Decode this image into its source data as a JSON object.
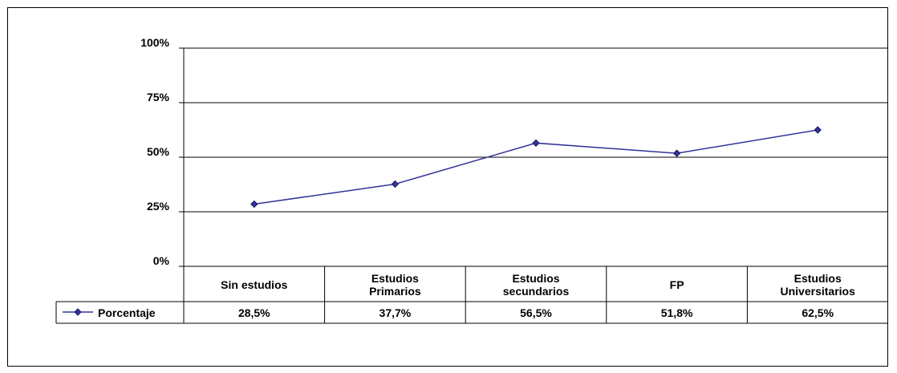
{
  "chart_data": {
    "type": "line",
    "categories": [
      [
        "Sin estudios"
      ],
      [
        "Estudios",
        "Primarios"
      ],
      [
        "Estudios",
        "secundarios"
      ],
      [
        "FP"
      ],
      [
        "Estudios",
        "Universitarios"
      ]
    ],
    "series": [
      {
        "name": "Porcentaje",
        "values": [
          28.5,
          37.7,
          56.5,
          51.8,
          62.5
        ],
        "labels": [
          "28,5%",
          "37,7%",
          "56,5%",
          "51,8%",
          "62,5%"
        ],
        "color": "#333399"
      }
    ],
    "yticks": [
      "0%",
      "25%",
      "50%",
      "75%",
      "100%"
    ],
    "ylim": [
      0,
      100
    ],
    "grid": true,
    "legend": "data-table-left",
    "line_color": "#333399"
  }
}
